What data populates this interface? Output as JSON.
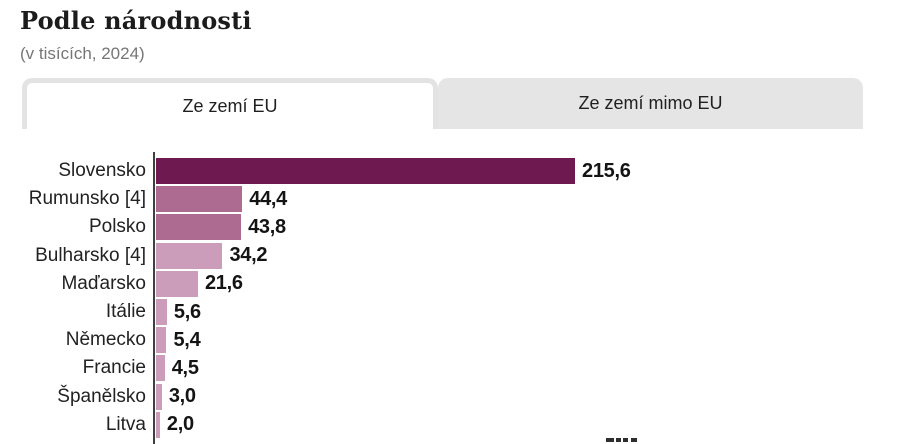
{
  "header": {
    "title": "Podle národnosti",
    "subtitle": "(v tisících, 2024)"
  },
  "tabs": [
    {
      "label": "Ze zemí EU",
      "active": true
    },
    {
      "label": "Ze zemí mimo EU",
      "active": false
    }
  ],
  "chart_data": {
    "type": "bar",
    "orientation": "horizontal",
    "title": "Podle národnosti",
    "subtitle": "(v tisících, 2024)",
    "categories": [
      "Slovensko",
      "Rumunsko [4]",
      "Polsko",
      "Bulharsko [4]",
      "Maďarsko",
      "Itálie",
      "Německo",
      "Francie",
      "Španělsko",
      "Litva"
    ],
    "values": [
      215.6,
      44.4,
      43.8,
      34.2,
      21.6,
      5.6,
      5.4,
      4.5,
      3.0,
      2.0
    ],
    "value_labels": [
      "215,6",
      "44,4",
      "43,8",
      "34,2",
      "21,6",
      "5,6",
      "5,4",
      "4,5",
      "3,0",
      "2,0"
    ],
    "bar_colors": [
      "#6e1a50",
      "#ad6b92",
      "#ad6b92",
      "#cb9dba",
      "#cb9dba",
      "#cb9dba",
      "#cb9dba",
      "#cb9dba",
      "#cb9dba",
      "#cb9dba"
    ],
    "xlim": [
      0,
      230
    ],
    "grid": false,
    "legend": false,
    "axis_color": "#3f3f3f"
  }
}
